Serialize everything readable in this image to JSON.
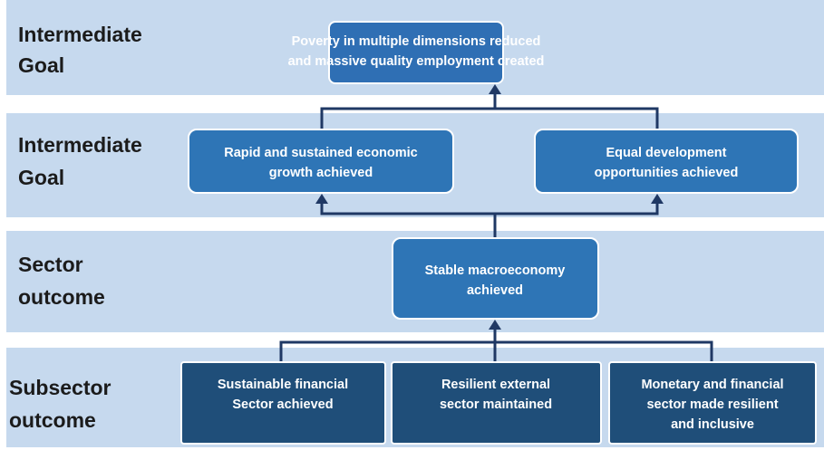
{
  "levels": [
    {
      "label": [
        "Intermediate",
        "Goal"
      ]
    },
    {
      "label": [
        "Intermediate",
        "Goal"
      ]
    },
    {
      "label": [
        "Sector",
        "outcome"
      ]
    },
    {
      "label": [
        "Subsector",
        "outcome"
      ]
    }
  ],
  "nodes": [
    {
      "label": [
        "Poverty in multiple dimensions reduced",
        "and massive quality employment created"
      ]
    },
    {
      "label": [
        "Rapid and sustained economic",
        "growth achieved"
      ]
    },
    {
      "label": [
        "Equal development",
        "opportunities achieved"
      ]
    },
    {
      "label": [
        "Stable macroeconomy",
        "achieved"
      ]
    },
    {
      "label": [
        "Sustainable financial",
        "Sector achieved"
      ]
    },
    {
      "label": [
        "Resilient external",
        "sector maintained"
      ]
    },
    {
      "label": [
        "Monetary and financial",
        "sector made resilient",
        "and inclusive"
      ]
    }
  ]
}
